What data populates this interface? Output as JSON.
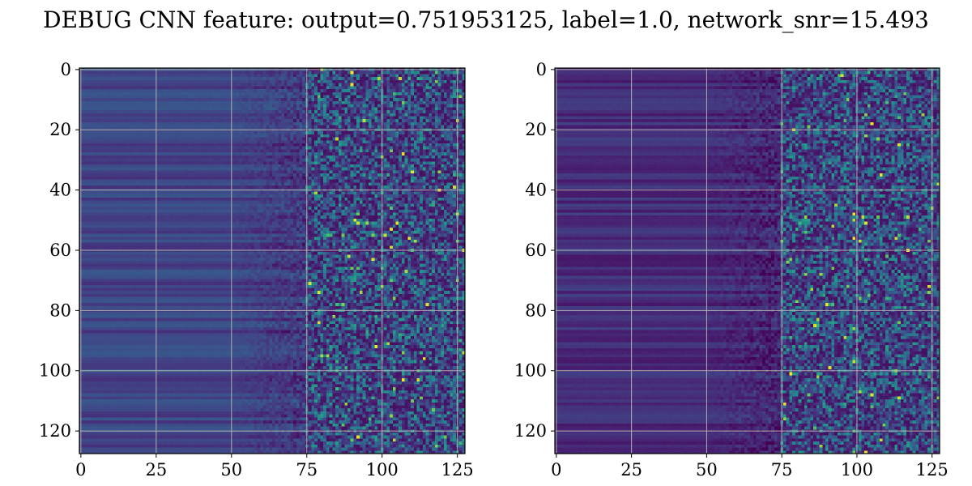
{
  "figure": {
    "title": "DEBUG CNN feature: output=0.751953125, label=1.0, network_snr=15.493"
  },
  "chart_data": [
    {
      "type": "heatmap",
      "title": "",
      "xlabel": "",
      "ylabel": "",
      "colormap": "viridis",
      "rows": 128,
      "cols": 128,
      "xlim": [
        -0.5,
        127.5
      ],
      "ylim": [
        127.5,
        -0.5
      ],
      "x_ticks": [
        0,
        25,
        50,
        75,
        100,
        125
      ],
      "x_tick_labels": [
        "0",
        "25",
        "50",
        "75",
        "100",
        "125"
      ],
      "y_ticks": [
        0,
        20,
        40,
        60,
        80,
        100,
        120
      ],
      "y_tick_labels": [
        "0",
        "20",
        "40",
        "60",
        "80",
        "100",
        "120"
      ],
      "grid": true,
      "noise_onset_column": 75
    },
    {
      "type": "heatmap",
      "title": "",
      "xlabel": "",
      "ylabel": "",
      "colormap": "viridis",
      "rows": 128,
      "cols": 128,
      "xlim": [
        -0.5,
        127.5
      ],
      "ylim": [
        127.5,
        -0.5
      ],
      "x_ticks": [
        0,
        25,
        50,
        75,
        100,
        125
      ],
      "x_tick_labels": [
        "0",
        "25",
        "50",
        "75",
        "100",
        "125"
      ],
      "y_ticks": [
        0,
        20,
        40,
        60,
        80,
        100,
        120
      ],
      "y_tick_labels": [
        "0",
        "20",
        "40",
        "60",
        "80",
        "100",
        "120"
      ],
      "grid": true,
      "noise_onset_column": 75
    }
  ]
}
